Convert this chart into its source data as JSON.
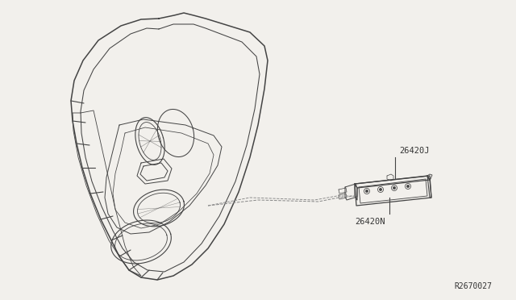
{
  "bg_color": "#f2f0ec",
  "line_color": "#444444",
  "dashed_line_color": "#888888",
  "label_color": "#333333",
  "label_26420J": "26420J",
  "label_26420N": "26420N",
  "label_ref": "R2670027",
  "font_size_labels": 7.5,
  "font_size_ref": 7.0
}
